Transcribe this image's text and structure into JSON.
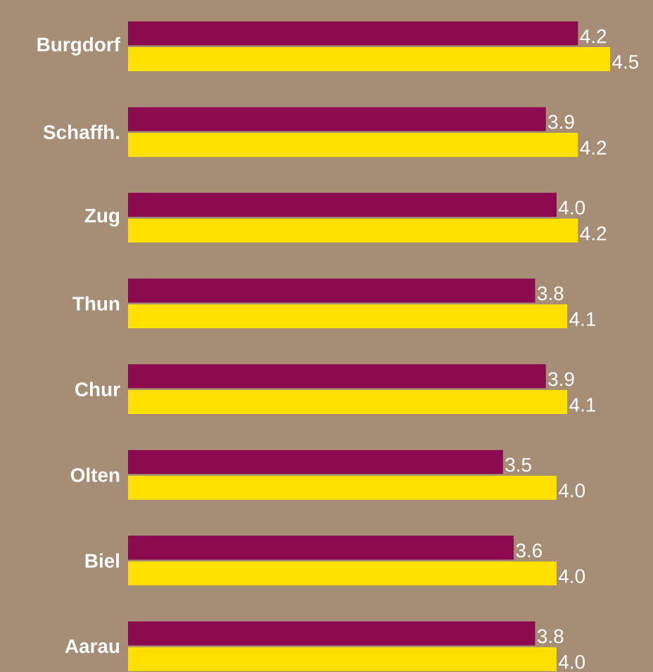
{
  "chart_data": {
    "type": "bar",
    "orientation": "horizontal",
    "categories": [
      "Burgdorf",
      "Schaffh.",
      "Zug",
      "Thun",
      "Chur",
      "Olten",
      "Biel",
      "Aarau"
    ],
    "series": [
      {
        "color": "#8b0a50",
        "values": [
          4.2,
          3.9,
          4.0,
          3.8,
          3.9,
          3.5,
          3.6,
          3.8
        ],
        "value_labels": [
          "4.2",
          "3.9",
          "4.0",
          "3.8",
          "3.9",
          "3.5",
          "3.6",
          "3.8"
        ]
      },
      {
        "color": "#ffe000",
        "values": [
          4.5,
          4.2,
          4.2,
          4.1,
          4.1,
          4.0,
          4.0,
          4.0
        ],
        "value_labels": [
          "4.5",
          "4.2",
          "4.2",
          "4.1",
          "4.1",
          "4.0",
          "4.0",
          "4.0"
        ]
      }
    ],
    "xlim": [
      0,
      4.9
    ],
    "tick_labels": "y"
  }
}
